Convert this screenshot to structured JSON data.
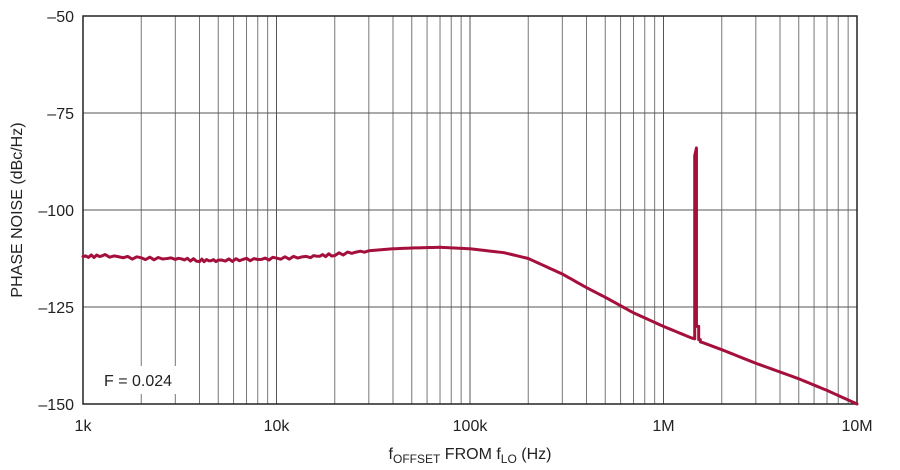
{
  "chart_data": {
    "type": "line",
    "title": "",
    "xlabel": {
      "prefix": "f",
      "sub1": "OFFSET",
      "mid": " FROM f",
      "sub2": "LO",
      "suffix": " (Hz)"
    },
    "ylabel": "PHASE NOISE (dBc/Hz)",
    "x_scale": "log",
    "xlim": [
      1000,
      10000000
    ],
    "ylim": [
      -150,
      -50
    ],
    "grid": true,
    "x_tick_values": [
      1000,
      10000,
      100000,
      1000000,
      10000000
    ],
    "x_tick_labels": [
      "1k",
      "10k",
      "100k",
      "1M",
      "10M"
    ],
    "y_tick_values": [
      -50,
      -75,
      -100,
      -125,
      -150
    ],
    "y_tick_labels": [
      "–50",
      "–75",
      "–100",
      "–125",
      "–150"
    ],
    "line_color": "#a50f3c",
    "annotation": "F = 0.024",
    "series": [
      {
        "x": [
          1000,
          1300,
          2000,
          3000,
          4000,
          5000,
          7000,
          10000,
          15000,
          20000,
          30000,
          40000,
          50000,
          70000,
          100000,
          150000,
          200000,
          300000,
          400000,
          500000,
          700000,
          1000000,
          1400000,
          1450000,
          1450000,
          1480000,
          1480000,
          1520000,
          1520000,
          1550000,
          1550000,
          1600000,
          2000000,
          3000000,
          5000000,
          7000000,
          10000000
        ],
        "y": [
          -112,
          -111.8,
          -112.5,
          -112.5,
          -113,
          -113,
          -112.8,
          -112.5,
          -112,
          -111.5,
          -110.5,
          -110,
          -109.8,
          -109.6,
          -110,
          -111,
          -112.5,
          -116.5,
          -120,
          -122.5,
          -126.5,
          -130,
          -133,
          -133.2,
          -86,
          -84,
          -130,
          -130,
          -133.4,
          -133.4,
          -134,
          -134.2,
          -136,
          -139.5,
          -143.5,
          -146.5,
          -150
        ]
      }
    ]
  }
}
